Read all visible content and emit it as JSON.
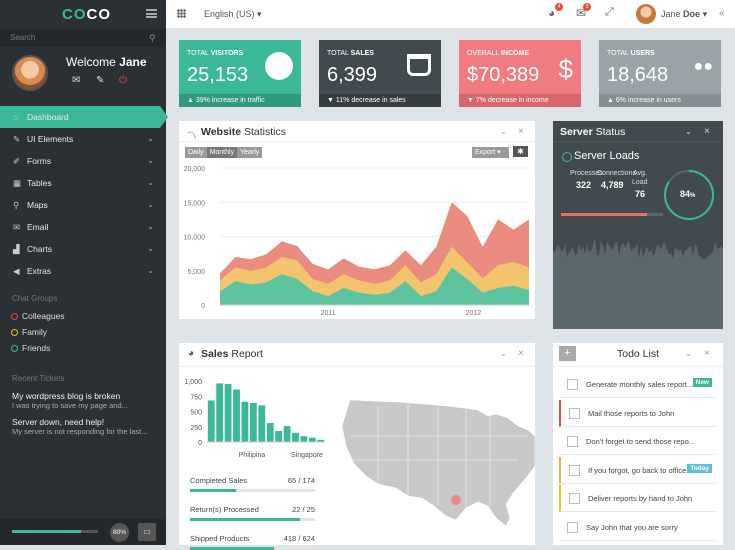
{
  "logo": {
    "text_a": "CO",
    "text_b": "CO"
  },
  "sidebar": {
    "search_placeholder": "Search",
    "welcome_prefix": "Welcome ",
    "welcome_name": "Jane",
    "nav": [
      {
        "label": "Dashboard",
        "icon": "home-icon"
      },
      {
        "label": "UI Elements",
        "icon": "pencil-icon"
      },
      {
        "label": "Forms",
        "icon": "edit-icon"
      },
      {
        "label": "Tables",
        "icon": "table-icon"
      },
      {
        "label": "Maps",
        "icon": "map-marker-icon"
      },
      {
        "label": "Email",
        "icon": "envelope-icon"
      },
      {
        "label": "Charts",
        "icon": "chart-icon"
      },
      {
        "label": "Extras",
        "icon": "bullhorn-icon"
      }
    ],
    "chat_groups_title": "Chat Groups",
    "chat_groups": [
      {
        "label": "Colleagues",
        "color": "#e74c3c"
      },
      {
        "label": "Family",
        "color": "#f1c40f"
      },
      {
        "label": "Friends",
        "color": "#3bb89a"
      }
    ],
    "tickets_title": "Recent Tickets",
    "tickets": [
      {
        "title": "My wordpress blog is broken",
        "snippet": "I was trying to save my page and..."
      },
      {
        "title": "Server down, need help!",
        "snippet": "My server is not responding for the last..."
      }
    ],
    "progress": 0.8,
    "progress_label": "80%"
  },
  "topbar": {
    "language": "English (US)",
    "badges": [
      "4",
      "3"
    ],
    "user_first": "Jane",
    "user_last": "Doe",
    "collapse": "«"
  },
  "stats": [
    {
      "label_a": "Total",
      "label_b": "Visitors",
      "value": "25,153",
      "foot": "39% increase in traffic",
      "arrow": "▲",
      "color": "#3bb89a",
      "foot_color": "#2f9a80",
      "icon": "globe-icon"
    },
    {
      "label_a": "Total",
      "label_b": "Sales",
      "value": "6,399",
      "foot": "11% decrease in sales",
      "arrow": "▼",
      "color": "#414a4f",
      "foot_color": "#363d41",
      "icon": "shopping-bag-icon"
    },
    {
      "label_a": "Overall",
      "label_b": "Income",
      "value": "$70,389",
      "foot": "7% decrease in income",
      "arrow": "▼",
      "color": "#f07b81",
      "foot_color": "#d8676d",
      "icon": "dollar-icon"
    },
    {
      "label_a": "Total",
      "label_b": "Users",
      "value": "18,648",
      "foot": "6% increase in users",
      "arrow": "▲",
      "color": "#9aa3a7",
      "foot_color": "#858e92",
      "icon": "users-icon"
    }
  ],
  "website_stats": {
    "title_bold": "Website",
    "title_rest": " Statistics",
    "ranges": [
      "Daily",
      "Monthly",
      "Yearly"
    ],
    "export": "Export",
    "collapse": "⌄",
    "close": "×"
  },
  "chart_data": {
    "type": "area",
    "x": [
      0,
      1,
      2,
      3,
      4,
      5,
      6,
      7,
      8,
      9,
      10,
      11,
      12,
      13,
      14,
      15,
      16,
      17,
      18,
      19,
      20
    ],
    "xticks": [
      "2011",
      "2012"
    ],
    "ylim": [
      0,
      20000
    ],
    "yticks": [
      "20,000",
      "15,000",
      "10,000",
      "5,000",
      "0"
    ],
    "series": [
      {
        "values": [
          2000,
          3500,
          3000,
          3300,
          4500,
          3800,
          2000,
          1300,
          2500,
          1800,
          1500,
          1800,
          3500,
          1300,
          2000,
          5500,
          3800,
          1800,
          2500,
          2800,
          2200
        ],
        "color": "#5ec4a0"
      },
      {
        "values": [
          3600,
          5500,
          5000,
          5500,
          7000,
          6500,
          3800,
          3100,
          4500,
          3600,
          3100,
          3600,
          5800,
          3300,
          4500,
          8500,
          6200,
          3900,
          5800,
          6300,
          5500
        ],
        "color": "#f2c46d"
      },
      {
        "values": [
          4600,
          7000,
          6700,
          7400,
          9300,
          8600,
          6000,
          5200,
          6800,
          5600,
          5200,
          5800,
          8000,
          5800,
          8500,
          15000,
          13000,
          8500,
          12500,
          11000,
          12500
        ],
        "color": "#ea8c7f"
      }
    ]
  },
  "server": {
    "title_bold": "Server",
    "title_rest": " Status",
    "loads": "Server Loads",
    "processes_label": "Processes",
    "processes": "322",
    "connections_label": "Connections",
    "connections": "4,789",
    "avg_label_1": "Avg.",
    "avg_label_2": "Load",
    "avg": "76",
    "gauge": "84",
    "gauge_unit": "%",
    "gauge_value": 0.84
  },
  "sales": {
    "title_bold": "Sales",
    "title_rest": " Report",
    "yticks": [
      "1,000",
      "750",
      "500",
      "250",
      "0"
    ],
    "bar_values": [
      680,
      960,
      950,
      860,
      660,
      640,
      600,
      310,
      180,
      260,
      150,
      95,
      70,
      35
    ],
    "xlabels": [
      "Philipina",
      "Singapore"
    ],
    "bars": [
      {
        "label": "Completed Sales",
        "value": "65 / 174",
        "frac": 0.37
      },
      {
        "label": "Return(s) Processed",
        "value": "22 / 25",
        "frac": 0.88
      },
      {
        "label": "Shipped Products",
        "value": "418 / 624",
        "frac": 0.67
      }
    ]
  },
  "todo": {
    "title": "Todo List",
    "add": "+",
    "items": [
      {
        "text": "Generate monthly sales report...",
        "tag": "New",
        "tag_color": "#3bb89a",
        "flag": ""
      },
      {
        "text": "Mail those reports to John",
        "tag": "",
        "flag": "#e74c3c"
      },
      {
        "text": "Don't forget to send those repo...",
        "tag": "",
        "flag": ""
      },
      {
        "text": "If you forgot, go back to office...",
        "tag": "Today",
        "tag_color": "#5bc0de",
        "flag": "#f0ad4e"
      },
      {
        "text": "Deliver reports by hand to John",
        "tag": "",
        "flag": "#f1c40f"
      },
      {
        "text": "Say John that you are sorry",
        "tag": "",
        "flag": ""
      }
    ]
  }
}
